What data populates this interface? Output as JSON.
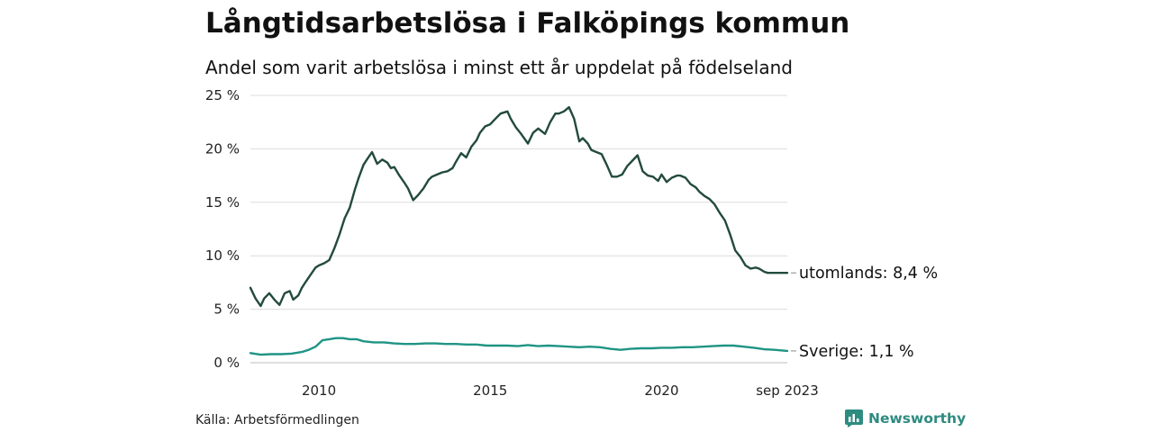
{
  "chart_data": {
    "type": "line",
    "title": "Långtidsarbetslösa i Falköpings kommun",
    "subtitle": "Andel som varit arbetslösa i minst ett år uppdelat på födelseland",
    "xlabel": "",
    "ylabel": "",
    "ylim": [
      0,
      25
    ],
    "xlim": [
      2008.0,
      2023.67
    ],
    "y_ticks": [
      0,
      5,
      10,
      15,
      20,
      25
    ],
    "y_tick_labels": [
      "0 %",
      "5 %",
      "10 %",
      "15 %",
      "20 %",
      "25 %"
    ],
    "x_ticks": [
      2010,
      2015,
      2020,
      2023.67
    ],
    "x_tick_labels": [
      "2010",
      "2015",
      "2020",
      "sep 2023"
    ],
    "grid": true,
    "series": [
      {
        "name": "utomlands",
        "end_label": "utomlands: 8,4 %",
        "color": "#234a3e",
        "x": [
          2008.0,
          2008.15,
          2008.3,
          2008.4,
          2008.55,
          2008.7,
          2008.85,
          2009.0,
          2009.15,
          2009.25,
          2009.4,
          2009.5,
          2009.6,
          2009.75,
          2009.9,
          2010.0,
          2010.15,
          2010.3,
          2010.45,
          2010.6,
          2010.75,
          2010.9,
          2011.05,
          2011.15,
          2011.3,
          2011.4,
          2011.55,
          2011.7,
          2011.85,
          2012.0,
          2012.1,
          2012.2,
          2012.35,
          2012.5,
          2012.6,
          2012.75,
          2012.9,
          2013.05,
          2013.2,
          2013.3,
          2013.45,
          2013.6,
          2013.75,
          2013.9,
          2014.0,
          2014.15,
          2014.3,
          2014.45,
          2014.6,
          2014.7,
          2014.85,
          2015.0,
          2015.15,
          2015.3,
          2015.5,
          2015.6,
          2015.75,
          2015.9,
          2016.1,
          2016.25,
          2016.4,
          2016.6,
          2016.75,
          2016.9,
          2017.0,
          2017.15,
          2017.3,
          2017.45,
          2017.6,
          2017.7,
          2017.85,
          2017.95,
          2018.1,
          2018.25,
          2018.4,
          2018.55,
          2018.7,
          2018.85,
          2019.0,
          2019.15,
          2019.3,
          2019.45,
          2019.6,
          2019.75,
          2019.9,
          2020.0,
          2020.15,
          2020.3,
          2020.45,
          2020.55,
          2020.7,
          2020.85,
          2021.0,
          2021.1,
          2021.25,
          2021.4,
          2021.55,
          2021.7,
          2021.85,
          2022.0,
          2022.15,
          2022.3,
          2022.45,
          2022.6,
          2022.75,
          2022.85,
          2023.0,
          2023.1,
          2023.2,
          2023.3,
          2023.4,
          2023.55,
          2023.67
        ],
        "values": [
          7.0,
          6.0,
          5.3,
          6.0,
          6.5,
          5.9,
          5.4,
          6.5,
          6.7,
          5.9,
          6.3,
          7.0,
          7.5,
          8.2,
          8.9,
          9.1,
          9.3,
          9.6,
          10.7,
          12.0,
          13.5,
          14.5,
          16.2,
          17.2,
          18.5,
          19.0,
          19.7,
          18.6,
          19.0,
          18.7,
          18.2,
          18.3,
          17.5,
          16.8,
          16.3,
          15.2,
          15.7,
          16.3,
          17.1,
          17.4,
          17.6,
          17.8,
          17.9,
          18.2,
          18.8,
          19.6,
          19.2,
          20.2,
          20.8,
          21.5,
          22.1,
          22.3,
          22.8,
          23.3,
          23.5,
          22.8,
          22.0,
          21.4,
          20.5,
          21.5,
          21.9,
          21.4,
          22.5,
          23.3,
          23.3,
          23.5,
          23.9,
          22.8,
          20.7,
          21.0,
          20.5,
          19.9,
          19.7,
          19.5,
          18.5,
          17.4,
          17.4,
          17.6,
          18.4,
          18.9,
          19.4,
          17.9,
          17.5,
          17.4,
          17.0,
          17.6,
          16.9,
          17.3,
          17.5,
          17.5,
          17.3,
          16.7,
          16.4,
          16.0,
          15.6,
          15.3,
          14.8,
          14.0,
          13.3,
          12.0,
          10.5,
          9.9,
          9.1,
          8.8,
          8.9,
          8.8,
          8.5,
          8.4,
          8.4,
          8.4,
          8.4,
          8.4,
          8.4
        ]
      },
      {
        "name": "Sverige",
        "end_label": "Sverige: 1,1 %",
        "color": "#1f9484",
        "x": [
          2008.0,
          2008.3,
          2008.6,
          2008.9,
          2009.2,
          2009.5,
          2009.7,
          2009.9,
          2010.1,
          2010.3,
          2010.5,
          2010.7,
          2010.9,
          2011.1,
          2011.3,
          2011.6,
          2011.9,
          2012.2,
          2012.5,
          2012.8,
          2013.1,
          2013.4,
          2013.7,
          2014.0,
          2014.3,
          2014.6,
          2014.9,
          2015.2,
          2015.5,
          2015.8,
          2016.1,
          2016.4,
          2016.7,
          2017.0,
          2017.3,
          2017.6,
          2017.9,
          2018.2,
          2018.5,
          2018.8,
          2019.1,
          2019.4,
          2019.7,
          2020.0,
          2020.3,
          2020.6,
          2020.9,
          2021.2,
          2021.5,
          2021.8,
          2022.1,
          2022.4,
          2022.7,
          2023.0,
          2023.3,
          2023.67
        ],
        "values": [
          0.9,
          0.75,
          0.8,
          0.8,
          0.85,
          1.0,
          1.2,
          1.5,
          2.1,
          2.2,
          2.3,
          2.3,
          2.2,
          2.2,
          2.0,
          1.9,
          1.9,
          1.8,
          1.75,
          1.75,
          1.8,
          1.8,
          1.75,
          1.75,
          1.7,
          1.7,
          1.6,
          1.6,
          1.6,
          1.55,
          1.65,
          1.55,
          1.6,
          1.55,
          1.5,
          1.45,
          1.5,
          1.45,
          1.3,
          1.2,
          1.3,
          1.35,
          1.35,
          1.4,
          1.4,
          1.45,
          1.45,
          1.5,
          1.55,
          1.6,
          1.6,
          1.5,
          1.4,
          1.25,
          1.2,
          1.1
        ]
      }
    ]
  },
  "footer": {
    "source": "Källa: Arbetsförmedlingen",
    "brand": "Newsworthy",
    "brand_color": "#2e8b80"
  }
}
